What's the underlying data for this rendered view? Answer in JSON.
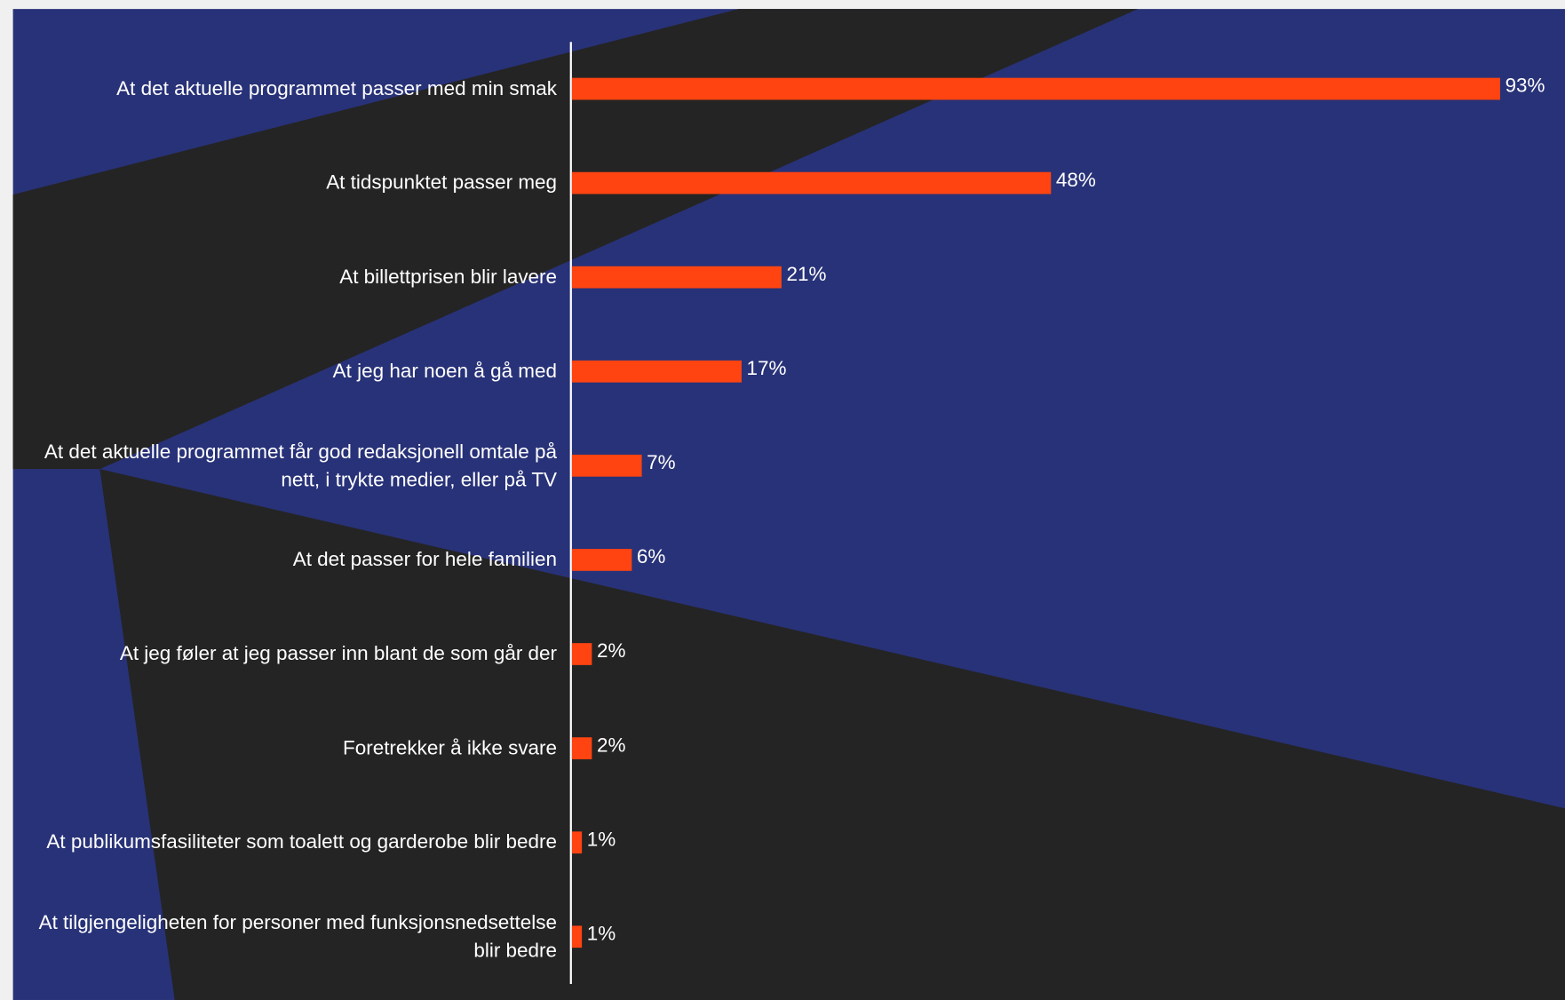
{
  "chart_data": {
    "type": "bar",
    "orientation": "horizontal",
    "categories": [
      "At det aktuelle programmet passer med min smak",
      "At tidspunktet passer meg",
      "At billettprisen blir lavere",
      "At jeg har noen å gå med",
      "At det aktuelle programmet får god redaksjonell omtale på nett, i trykte medier, eller på TV",
      "At det passer for hele familien",
      "At jeg føler at jeg passer inn blant de som går der",
      "Foretrekker å ikke svare",
      "At publikumsfasiliteter som toalett og garderobe blir bedre",
      "At tilgjengeligheten for personer med funksjonsnedsettelse blir bedre"
    ],
    "values": [
      93,
      48,
      21,
      17,
      7,
      6,
      2,
      2,
      1,
      1
    ],
    "value_labels": [
      "93%",
      "48%",
      "21%",
      "17%",
      "7%",
      "6%",
      "2%",
      "2%",
      "1%",
      "1%"
    ],
    "color": "#ff4411"
  }
}
